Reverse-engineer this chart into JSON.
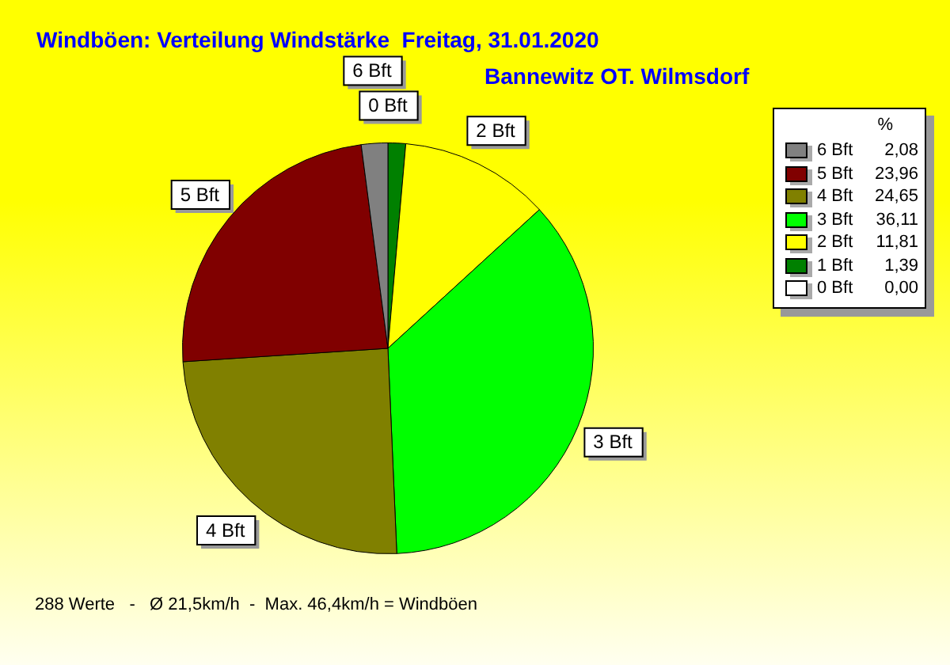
{
  "chart_data": {
    "type": "pie",
    "title": "Windböen: Verteilung Windstärke  Freitag, 31.01.2020",
    "subtitle": "Bannewitz OT. Wilmsdorf",
    "legend_title": "%",
    "legend": "top right",
    "categories": [
      "0 Bft",
      "1 Bft",
      "2 Bft",
      "3 Bft",
      "4 Bft",
      "5 Bft",
      "6 Bft"
    ],
    "values": [
      0,
      1.39,
      11.81,
      36.11,
      24.65,
      23.96,
      2.08
    ],
    "value_labels": [
      "0,00",
      "1,39",
      "11,81",
      "36,11",
      "24,65",
      "23,96",
      "2,08"
    ],
    "colors": [
      "#ffffff",
      "#008000",
      "#ffff00",
      "#00ff00",
      "#808000",
      "#800000",
      "#808080"
    ],
    "annotations": [
      {
        "text": "0 Bft",
        "x": "0 Bft"
      },
      {
        "text": "2 Bft",
        "x": "2 Bft"
      },
      {
        "text": "3 Bft",
        "x": "3 Bft"
      },
      {
        "text": "4 Bft",
        "x": "4 Bft"
      },
      {
        "text": "5 Bft",
        "x": "5 Bft"
      },
      {
        "text": "6 Bft",
        "x": "6 Bft"
      },
      "288 Werte   -   Ø 21,5km/h  -  Max. 46,4km/h = Windböen"
    ]
  }
}
